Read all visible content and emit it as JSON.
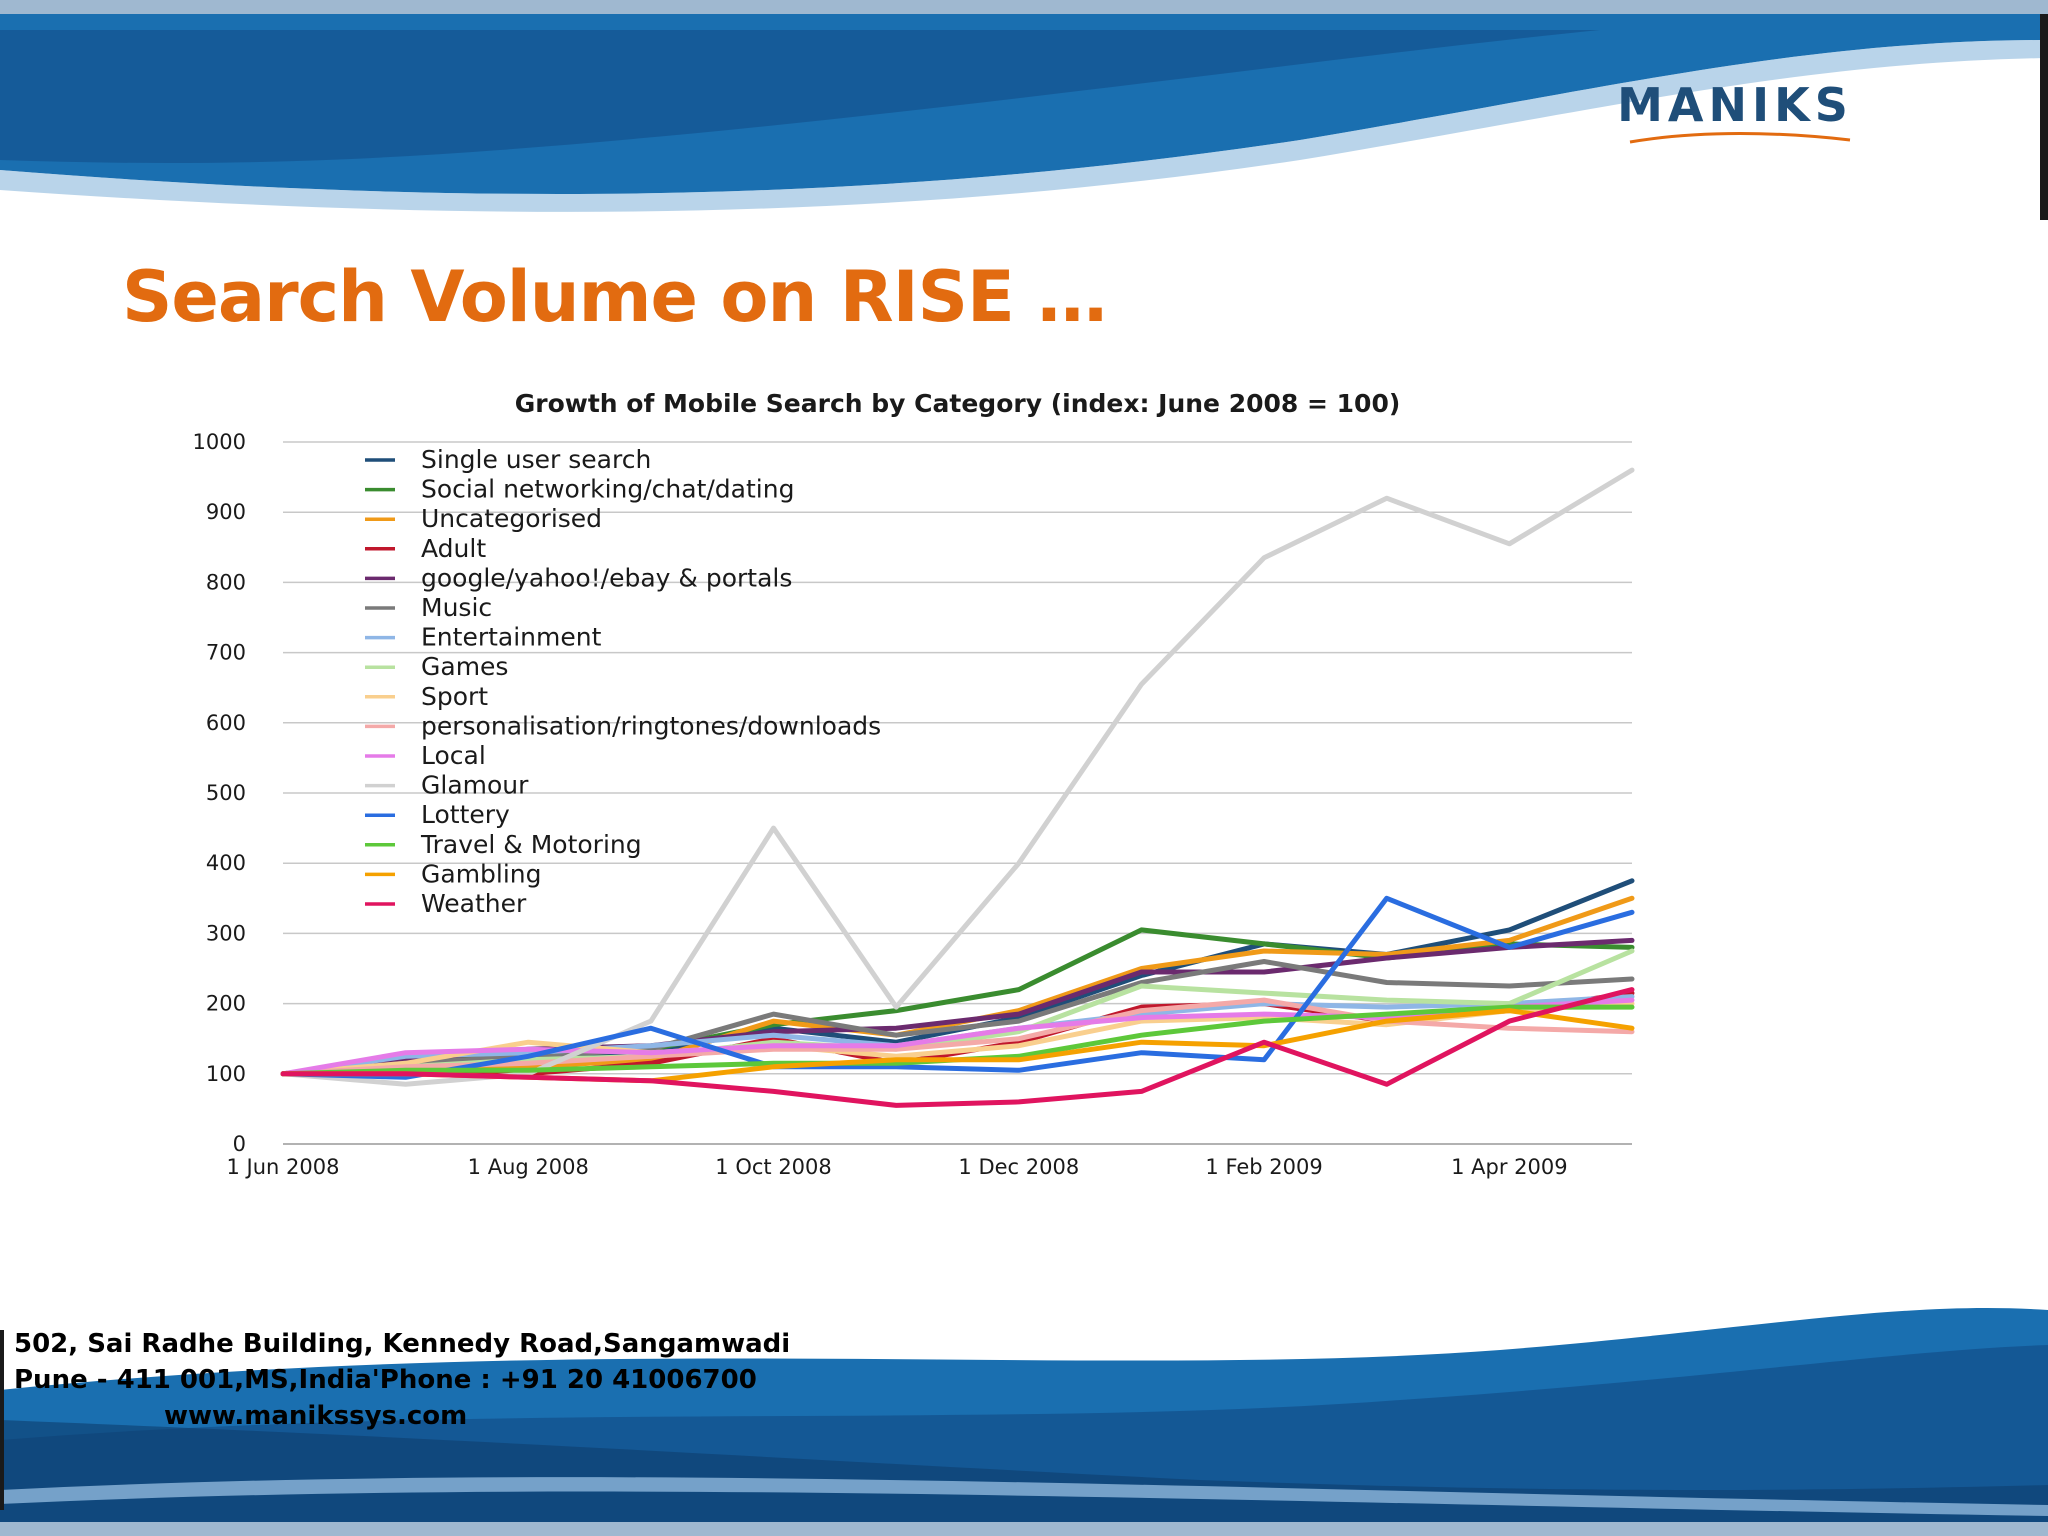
{
  "logo": {
    "text": "MANIKS"
  },
  "slide": {
    "title": "Search Volume on RISE …"
  },
  "footer": {
    "address_line1": "502, Sai Radhe Building, Kennedy Road,Sangamwadi",
    "address_line2": "Pune - 411 001,MS,India'Phone : +91 20 41006700",
    "website": "www.manikssys.com"
  },
  "colors": {
    "title": "#e26b10",
    "logo": "#1f4e79",
    "header_band": "#1a6fb0",
    "grid": "#c8c8c8"
  },
  "chart_data": {
    "type": "line",
    "title": "Growth of Mobile Search by Category (index: June 2008 = 100)",
    "xlabel": "",
    "ylabel": "",
    "ylim": [
      0,
      1000
    ],
    "yticks": [
      0,
      100,
      200,
      300,
      400,
      500,
      600,
      700,
      800,
      900,
      1000
    ],
    "xticks": [
      "1 Jun 2008",
      "1 Aug 2008",
      "1 Oct 2008",
      "1 Dec 2008",
      "1 Feb 2009",
      "1 Apr 2009"
    ],
    "x": [
      "1 Jun 2008",
      "1 Jul 2008",
      "1 Aug 2008",
      "1 Sep 2008",
      "1 Oct 2008",
      "1 Nov 2008",
      "1 Dec 2008",
      "1 Jan 2009",
      "1 Feb 2009",
      "1 Mar 2009",
      "1 Apr 2009",
      "1 May 2009"
    ],
    "grid": true,
    "legend_position": "top-left",
    "series": [
      {
        "name": "Single user search",
        "color": "#1f4e79",
        "values": [
          100,
          115,
          120,
          130,
          165,
          145,
          180,
          240,
          285,
          270,
          305,
          375
        ]
      },
      {
        "name": "Social networking/chat/dating",
        "color": "#3a8c2f",
        "values": [
          100,
          120,
          125,
          135,
          170,
          190,
          220,
          305,
          285,
          265,
          285,
          280
        ]
      },
      {
        "name": "Uncategorised",
        "color": "#f09a18",
        "values": [
          100,
          110,
          110,
          120,
          175,
          155,
          190,
          250,
          275,
          270,
          290,
          350
        ]
      },
      {
        "name": "Adult",
        "color": "#c0172c",
        "values": [
          100,
          105,
          100,
          115,
          150,
          115,
          145,
          195,
          200,
          175,
          190,
          215
        ]
      },
      {
        "name": "google/yahoo!/ebay & portals",
        "color": "#6b2a6e",
        "values": [
          100,
          120,
          135,
          140,
          160,
          165,
          185,
          245,
          245,
          265,
          280,
          290
        ]
      },
      {
        "name": "Music",
        "color": "#7a7a7a",
        "values": [
          100,
          115,
          125,
          135,
          185,
          155,
          175,
          230,
          260,
          230,
          225,
          235
        ]
      },
      {
        "name": "Entertainment",
        "color": "#8fb6e6",
        "values": [
          100,
          125,
          130,
          140,
          155,
          140,
          165,
          185,
          200,
          195,
          200,
          210
        ]
      },
      {
        "name": "Games",
        "color": "#b8e2a0",
        "values": [
          100,
          110,
          120,
          125,
          145,
          135,
          160,
          225,
          215,
          205,
          200,
          275
        ]
      },
      {
        "name": "Sport",
        "color": "#f9cf8e",
        "values": [
          100,
          115,
          145,
          130,
          140,
          125,
          140,
          175,
          180,
          170,
          190,
          200
        ]
      },
      {
        "name": "personalisation/ringtones/downloads",
        "color": "#f4a9a8",
        "values": [
          100,
          110,
          115,
          125,
          135,
          135,
          150,
          190,
          205,
          175,
          165,
          160
        ]
      },
      {
        "name": "Local",
        "color": "#e57be8",
        "values": [
          100,
          130,
          135,
          130,
          140,
          140,
          165,
          180,
          185,
          180,
          195,
          205
        ]
      },
      {
        "name": "Glamour",
        "color": "#d1d1d1",
        "values": [
          100,
          85,
          100,
          175,
          450,
          195,
          400,
          655,
          835,
          920,
          855,
          960
        ]
      },
      {
        "name": "Lottery",
        "color": "#2a6de0",
        "values": [
          100,
          95,
          125,
          165,
          110,
          110,
          105,
          130,
          120,
          350,
          280,
          330
        ]
      },
      {
        "name": "Travel & Motoring",
        "color": "#5dc83a",
        "values": [
          100,
          105,
          105,
          110,
          115,
          115,
          125,
          155,
          175,
          185,
          195,
          195
        ]
      },
      {
        "name": "Gambling",
        "color": "#f5a100",
        "values": [
          100,
          100,
          95,
          90,
          110,
          120,
          120,
          145,
          140,
          175,
          190,
          165
        ]
      },
      {
        "name": "Weather",
        "color": "#e0145f",
        "values": [
          100,
          100,
          95,
          90,
          75,
          55,
          60,
          75,
          145,
          85,
          175,
          220
        ]
      }
    ]
  }
}
